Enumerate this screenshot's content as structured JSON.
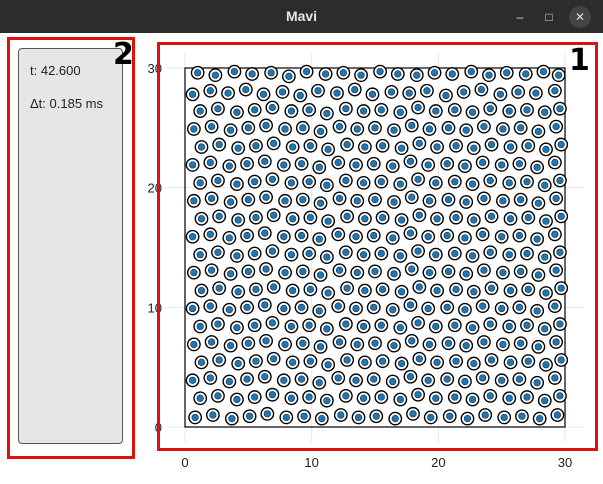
{
  "window": {
    "title": "Mavi",
    "minimize_icon": "minimize-icon",
    "maximize_icon": "maximize-icon",
    "close_icon": "close-icon"
  },
  "panel_labels": {
    "plot": "1",
    "info": "2"
  },
  "info": {
    "time": "t: 42.600",
    "dt": "Δt: 0.185 ms"
  },
  "colors": {
    "highlight_box": "#e01010",
    "particle_fill": "#1f77b4",
    "particle_ring": "#000000",
    "titlebar": "#2c2c2c"
  },
  "chart_data": {
    "type": "scatter",
    "title": "",
    "xlabel": "",
    "ylabel": "",
    "xlim": [
      0,
      30
    ],
    "ylim": [
      0,
      30
    ],
    "xticks": [
      0,
      10,
      20,
      30
    ],
    "yticks": [
      0,
      10,
      20,
      30
    ],
    "xtick_labels": [
      "0",
      "10",
      "20",
      "30"
    ],
    "ytick_labels": [
      "0",
      "10",
      "20",
      "30"
    ],
    "grid": true,
    "points_pattern": "dense uniform packing of circular particles filling the 0–30 square box",
    "points": [
      [
        1.0,
        29.6
      ],
      [
        2.4,
        29.4
      ],
      [
        3.9,
        29.7
      ],
      [
        5.3,
        29.5
      ],
      [
        6.8,
        29.6
      ],
      [
        8.2,
        29.3
      ],
      [
        9.6,
        29.7
      ],
      [
        11.1,
        29.5
      ],
      [
        12.5,
        29.6
      ],
      [
        13.9,
        29.4
      ],
      [
        15.4,
        29.7
      ],
      [
        16.8,
        29.5
      ],
      [
        18.3,
        29.4
      ],
      [
        19.7,
        29.6
      ],
      [
        21.1,
        29.5
      ],
      [
        22.6,
        29.7
      ],
      [
        24.0,
        29.4
      ],
      [
        25.4,
        29.6
      ],
      [
        26.9,
        29.5
      ],
      [
        28.3,
        29.7
      ],
      [
        29.5,
        29.4
      ],
      [
        0.6,
        27.8
      ],
      [
        2.0,
        28.1
      ],
      [
        3.4,
        27.9
      ],
      [
        4.8,
        28.2
      ],
      [
        6.2,
        27.8
      ],
      [
        7.7,
        28.0
      ],
      [
        9.1,
        27.7
      ],
      [
        10.5,
        28.1
      ],
      [
        12.0,
        27.9
      ],
      [
        13.4,
        28.2
      ],
      [
        14.8,
        27.8
      ],
      [
        16.3,
        28.0
      ],
      [
        17.7,
        27.9
      ],
      [
        19.1,
        28.1
      ],
      [
        20.6,
        27.7
      ],
      [
        22.0,
        28.0
      ],
      [
        23.4,
        28.2
      ],
      [
        24.9,
        27.8
      ],
      [
        26.3,
        28.0
      ],
      [
        27.7,
        27.9
      ],
      [
        29.2,
        28.1
      ],
      [
        1.2,
        26.4
      ],
      [
        2.6,
        26.6
      ],
      [
        4.1,
        26.3
      ],
      [
        5.5,
        26.5
      ],
      [
        6.9,
        26.7
      ],
      [
        8.4,
        26.4
      ],
      [
        9.8,
        26.5
      ],
      [
        11.2,
        26.2
      ],
      [
        12.7,
        26.6
      ],
      [
        14.1,
        26.4
      ],
      [
        15.5,
        26.5
      ],
      [
        17.0,
        26.3
      ],
      [
        18.4,
        26.7
      ],
      [
        19.8,
        26.4
      ],
      [
        21.3,
        26.5
      ],
      [
        22.7,
        26.3
      ],
      [
        24.1,
        26.6
      ],
      [
        25.6,
        26.4
      ],
      [
        27.0,
        26.5
      ],
      [
        28.4,
        26.3
      ],
      [
        29.6,
        26.6
      ],
      [
        0.7,
        24.9
      ],
      [
        2.1,
        25.1
      ],
      [
        3.6,
        24.8
      ],
      [
        5.0,
        25.0
      ],
      [
        6.4,
        25.2
      ],
      [
        7.9,
        24.9
      ],
      [
        9.3,
        25.0
      ],
      [
        10.7,
        24.7
      ],
      [
        12.2,
        25.1
      ],
      [
        13.6,
        24.9
      ],
      [
        15.0,
        25.0
      ],
      [
        16.5,
        24.8
      ],
      [
        17.9,
        25.2
      ],
      [
        19.3,
        24.9
      ],
      [
        20.8,
        25.0
      ],
      [
        22.2,
        24.8
      ],
      [
        23.6,
        25.1
      ],
      [
        25.1,
        24.9
      ],
      [
        26.5,
        25.0
      ],
      [
        27.9,
        24.7
      ],
      [
        29.3,
        25.1
      ],
      [
        1.3,
        23.4
      ],
      [
        2.7,
        23.6
      ],
      [
        4.2,
        23.3
      ],
      [
        5.6,
        23.5
      ],
      [
        7.0,
        23.7
      ],
      [
        8.5,
        23.4
      ],
      [
        9.9,
        23.5
      ],
      [
        11.3,
        23.2
      ],
      [
        12.8,
        23.6
      ],
      [
        14.2,
        23.4
      ],
      [
        15.6,
        23.5
      ],
      [
        17.1,
        23.3
      ],
      [
        18.5,
        23.7
      ],
      [
        19.9,
        23.4
      ],
      [
        21.4,
        23.5
      ],
      [
        22.8,
        23.3
      ],
      [
        24.2,
        23.6
      ],
      [
        25.7,
        23.4
      ],
      [
        27.1,
        23.5
      ],
      [
        28.5,
        23.2
      ],
      [
        29.7,
        23.6
      ],
      [
        0.6,
        21.9
      ],
      [
        2.0,
        22.1
      ],
      [
        3.5,
        21.8
      ],
      [
        4.9,
        22.0
      ],
      [
        6.3,
        22.2
      ],
      [
        7.8,
        21.9
      ],
      [
        9.2,
        22.0
      ],
      [
        10.6,
        21.7
      ],
      [
        12.1,
        22.1
      ],
      [
        13.5,
        21.9
      ],
      [
        14.9,
        22.0
      ],
      [
        16.4,
        21.8
      ],
      [
        17.8,
        22.2
      ],
      [
        19.2,
        21.9
      ],
      [
        20.7,
        22.0
      ],
      [
        22.1,
        21.8
      ],
      [
        23.5,
        22.1
      ],
      [
        25.0,
        21.9
      ],
      [
        26.4,
        22.0
      ],
      [
        27.8,
        21.7
      ],
      [
        29.2,
        22.1
      ],
      [
        1.2,
        20.4
      ],
      [
        2.6,
        20.6
      ],
      [
        4.1,
        20.3
      ],
      [
        5.5,
        20.5
      ],
      [
        6.9,
        20.7
      ],
      [
        8.4,
        20.4
      ],
      [
        9.8,
        20.5
      ],
      [
        11.2,
        20.2
      ],
      [
        12.7,
        20.6
      ],
      [
        14.1,
        20.4
      ],
      [
        15.5,
        20.5
      ],
      [
        17.0,
        20.3
      ],
      [
        18.4,
        20.7
      ],
      [
        19.8,
        20.4
      ],
      [
        21.3,
        20.5
      ],
      [
        22.7,
        20.3
      ],
      [
        24.1,
        20.6
      ],
      [
        25.6,
        20.4
      ],
      [
        27.0,
        20.5
      ],
      [
        28.4,
        20.2
      ],
      [
        29.6,
        20.6
      ],
      [
        0.7,
        18.9
      ],
      [
        2.1,
        19.1
      ],
      [
        3.6,
        18.8
      ],
      [
        5.0,
        19.0
      ],
      [
        6.4,
        19.2
      ],
      [
        7.9,
        18.9
      ],
      [
        9.3,
        19.0
      ],
      [
        10.7,
        18.7
      ],
      [
        12.2,
        19.1
      ],
      [
        13.6,
        18.9
      ],
      [
        15.0,
        19.0
      ],
      [
        16.5,
        18.8
      ],
      [
        17.9,
        19.2
      ],
      [
        19.3,
        18.9
      ],
      [
        20.8,
        19.0
      ],
      [
        22.2,
        18.8
      ],
      [
        23.6,
        19.1
      ],
      [
        25.1,
        18.9
      ],
      [
        26.5,
        19.0
      ],
      [
        27.9,
        18.7
      ],
      [
        29.3,
        19.1
      ],
      [
        1.3,
        17.4
      ],
      [
        2.7,
        17.6
      ],
      [
        4.2,
        17.3
      ],
      [
        5.6,
        17.5
      ],
      [
        7.0,
        17.7
      ],
      [
        8.5,
        17.4
      ],
      [
        9.9,
        17.5
      ],
      [
        11.3,
        17.2
      ],
      [
        12.8,
        17.6
      ],
      [
        14.2,
        17.4
      ],
      [
        15.6,
        17.5
      ],
      [
        17.1,
        17.3
      ],
      [
        18.5,
        17.7
      ],
      [
        19.9,
        17.4
      ],
      [
        21.4,
        17.5
      ],
      [
        22.8,
        17.3
      ],
      [
        24.2,
        17.6
      ],
      [
        25.7,
        17.4
      ],
      [
        27.1,
        17.5
      ],
      [
        28.5,
        17.2
      ],
      [
        29.7,
        17.6
      ],
      [
        0.6,
        15.9
      ],
      [
        2.0,
        16.1
      ],
      [
        3.5,
        15.8
      ],
      [
        4.9,
        16.0
      ],
      [
        6.3,
        16.2
      ],
      [
        7.8,
        15.9
      ],
      [
        9.2,
        16.0
      ],
      [
        10.6,
        15.7
      ],
      [
        12.1,
        16.1
      ],
      [
        13.5,
        15.9
      ],
      [
        14.9,
        16.0
      ],
      [
        16.4,
        15.8
      ],
      [
        17.8,
        16.2
      ],
      [
        19.2,
        15.9
      ],
      [
        20.7,
        16.0
      ],
      [
        22.1,
        15.8
      ],
      [
        23.5,
        16.1
      ],
      [
        25.0,
        15.9
      ],
      [
        26.4,
        16.0
      ],
      [
        27.8,
        15.7
      ],
      [
        29.2,
        16.1
      ],
      [
        1.2,
        14.4
      ],
      [
        2.6,
        14.6
      ],
      [
        4.1,
        14.3
      ],
      [
        5.5,
        14.5
      ],
      [
        6.9,
        14.7
      ],
      [
        8.4,
        14.4
      ],
      [
        9.8,
        14.5
      ],
      [
        11.2,
        14.2
      ],
      [
        12.7,
        14.6
      ],
      [
        14.1,
        14.4
      ],
      [
        15.5,
        14.5
      ],
      [
        17.0,
        14.3
      ],
      [
        18.4,
        14.7
      ],
      [
        19.8,
        14.4
      ],
      [
        21.3,
        14.5
      ],
      [
        22.7,
        14.3
      ],
      [
        24.1,
        14.6
      ],
      [
        25.6,
        14.4
      ],
      [
        27.0,
        14.5
      ],
      [
        28.4,
        14.2
      ],
      [
        29.6,
        14.6
      ],
      [
        0.7,
        12.9
      ],
      [
        2.1,
        13.1
      ],
      [
        3.6,
        12.8
      ],
      [
        5.0,
        13.0
      ],
      [
        6.4,
        13.2
      ],
      [
        7.9,
        12.9
      ],
      [
        9.3,
        13.0
      ],
      [
        10.7,
        12.7
      ],
      [
        12.2,
        13.1
      ],
      [
        13.6,
        12.9
      ],
      [
        15.0,
        13.0
      ],
      [
        16.5,
        12.8
      ],
      [
        17.9,
        13.2
      ],
      [
        19.3,
        12.9
      ],
      [
        20.8,
        13.0
      ],
      [
        22.2,
        12.8
      ],
      [
        23.6,
        13.1
      ],
      [
        25.1,
        12.9
      ],
      [
        26.5,
        13.0
      ],
      [
        27.9,
        12.7
      ],
      [
        29.3,
        13.1
      ],
      [
        1.3,
        11.4
      ],
      [
        2.7,
        11.6
      ],
      [
        4.2,
        11.3
      ],
      [
        5.6,
        11.5
      ],
      [
        7.0,
        11.7
      ],
      [
        8.5,
        11.4
      ],
      [
        9.9,
        11.5
      ],
      [
        11.3,
        11.2
      ],
      [
        12.8,
        11.6
      ],
      [
        14.2,
        11.4
      ],
      [
        15.6,
        11.5
      ],
      [
        17.1,
        11.3
      ],
      [
        18.5,
        11.7
      ],
      [
        19.9,
        11.4
      ],
      [
        21.4,
        11.5
      ],
      [
        22.8,
        11.3
      ],
      [
        24.2,
        11.6
      ],
      [
        25.7,
        11.4
      ],
      [
        27.1,
        11.5
      ],
      [
        28.5,
        11.2
      ],
      [
        29.7,
        11.6
      ],
      [
        0.6,
        9.9
      ],
      [
        2.0,
        10.1
      ],
      [
        3.5,
        9.8
      ],
      [
        4.9,
        10.0
      ],
      [
        6.3,
        10.2
      ],
      [
        7.8,
        9.9
      ],
      [
        9.2,
        10.0
      ],
      [
        10.6,
        9.7
      ],
      [
        12.1,
        10.1
      ],
      [
        13.5,
        9.9
      ],
      [
        14.9,
        10.0
      ],
      [
        16.4,
        9.8
      ],
      [
        17.8,
        10.2
      ],
      [
        19.2,
        9.9
      ],
      [
        20.7,
        10.0
      ],
      [
        22.1,
        9.8
      ],
      [
        23.5,
        10.1
      ],
      [
        25.0,
        9.9
      ],
      [
        26.4,
        10.0
      ],
      [
        27.8,
        9.7
      ],
      [
        29.2,
        10.1
      ],
      [
        1.2,
        8.4
      ],
      [
        2.6,
        8.6
      ],
      [
        4.1,
        8.3
      ],
      [
        5.5,
        8.5
      ],
      [
        6.9,
        8.7
      ],
      [
        8.4,
        8.4
      ],
      [
        9.8,
        8.5
      ],
      [
        11.2,
        8.2
      ],
      [
        12.7,
        8.6
      ],
      [
        14.1,
        8.4
      ],
      [
        15.5,
        8.5
      ],
      [
        17.0,
        8.3
      ],
      [
        18.4,
        8.7
      ],
      [
        19.8,
        8.4
      ],
      [
        21.3,
        8.5
      ],
      [
        22.7,
        8.3
      ],
      [
        24.1,
        8.6
      ],
      [
        25.6,
        8.4
      ],
      [
        27.0,
        8.5
      ],
      [
        28.4,
        8.2
      ],
      [
        29.6,
        8.6
      ],
      [
        0.7,
        6.9
      ],
      [
        2.1,
        7.1
      ],
      [
        3.6,
        6.8
      ],
      [
        5.0,
        7.0
      ],
      [
        6.4,
        7.2
      ],
      [
        7.9,
        6.9
      ],
      [
        9.3,
        7.0
      ],
      [
        10.7,
        6.7
      ],
      [
        12.2,
        7.1
      ],
      [
        13.6,
        6.9
      ],
      [
        15.0,
        7.0
      ],
      [
        16.5,
        6.8
      ],
      [
        17.9,
        7.2
      ],
      [
        19.3,
        6.9
      ],
      [
        20.8,
        7.0
      ],
      [
        22.2,
        6.8
      ],
      [
        23.6,
        7.1
      ],
      [
        25.1,
        6.9
      ],
      [
        26.5,
        7.0
      ],
      [
        27.9,
        6.7
      ],
      [
        29.3,
        7.1
      ],
      [
        1.3,
        5.4
      ],
      [
        2.7,
        5.6
      ],
      [
        4.2,
        5.3
      ],
      [
        5.6,
        5.5
      ],
      [
        7.0,
        5.7
      ],
      [
        8.5,
        5.4
      ],
      [
        9.9,
        5.5
      ],
      [
        11.3,
        5.2
      ],
      [
        12.8,
        5.6
      ],
      [
        14.2,
        5.4
      ],
      [
        15.6,
        5.5
      ],
      [
        17.1,
        5.3
      ],
      [
        18.5,
        5.7
      ],
      [
        19.9,
        5.4
      ],
      [
        21.4,
        5.5
      ],
      [
        22.8,
        5.3
      ],
      [
        24.2,
        5.6
      ],
      [
        25.7,
        5.4
      ],
      [
        27.1,
        5.5
      ],
      [
        28.5,
        5.2
      ],
      [
        29.7,
        5.6
      ],
      [
        0.6,
        3.9
      ],
      [
        2.0,
        4.1
      ],
      [
        3.5,
        3.8
      ],
      [
        4.9,
        4.0
      ],
      [
        6.3,
        4.2
      ],
      [
        7.8,
        3.9
      ],
      [
        9.2,
        4.0
      ],
      [
        10.6,
        3.7
      ],
      [
        12.1,
        4.1
      ],
      [
        13.5,
        3.9
      ],
      [
        14.9,
        4.0
      ],
      [
        16.4,
        3.8
      ],
      [
        17.8,
        4.2
      ],
      [
        19.2,
        3.9
      ],
      [
        20.7,
        4.0
      ],
      [
        22.1,
        3.8
      ],
      [
        23.5,
        4.1
      ],
      [
        25.0,
        3.9
      ],
      [
        26.4,
        4.0
      ],
      [
        27.8,
        3.7
      ],
      [
        29.2,
        4.1
      ],
      [
        1.2,
        2.4
      ],
      [
        2.6,
        2.6
      ],
      [
        4.1,
        2.3
      ],
      [
        5.5,
        2.5
      ],
      [
        6.9,
        2.7
      ],
      [
        8.4,
        2.4
      ],
      [
        9.8,
        2.5
      ],
      [
        11.2,
        2.2
      ],
      [
        12.7,
        2.6
      ],
      [
        14.1,
        2.4
      ],
      [
        15.5,
        2.5
      ],
      [
        17.0,
        2.3
      ],
      [
        18.4,
        2.7
      ],
      [
        19.8,
        2.4
      ],
      [
        21.3,
        2.5
      ],
      [
        22.7,
        2.3
      ],
      [
        24.1,
        2.6
      ],
      [
        25.6,
        2.4
      ],
      [
        27.0,
        2.5
      ],
      [
        28.4,
        2.2
      ],
      [
        29.6,
        2.6
      ],
      [
        0.8,
        0.8
      ],
      [
        2.2,
        1.0
      ],
      [
        3.7,
        0.7
      ],
      [
        5.1,
        0.9
      ],
      [
        6.5,
        1.1
      ],
      [
        8.0,
        0.8
      ],
      [
        9.4,
        0.9
      ],
      [
        10.8,
        0.7
      ],
      [
        12.3,
        1.0
      ],
      [
        13.7,
        0.8
      ],
      [
        15.1,
        0.9
      ],
      [
        16.6,
        0.7
      ],
      [
        18.0,
        1.1
      ],
      [
        19.4,
        0.8
      ],
      [
        20.9,
        0.9
      ],
      [
        22.3,
        0.7
      ],
      [
        23.7,
        1.0
      ],
      [
        25.2,
        0.8
      ],
      [
        26.6,
        0.9
      ],
      [
        28.0,
        0.7
      ],
      [
        29.4,
        1.0
      ]
    ]
  }
}
